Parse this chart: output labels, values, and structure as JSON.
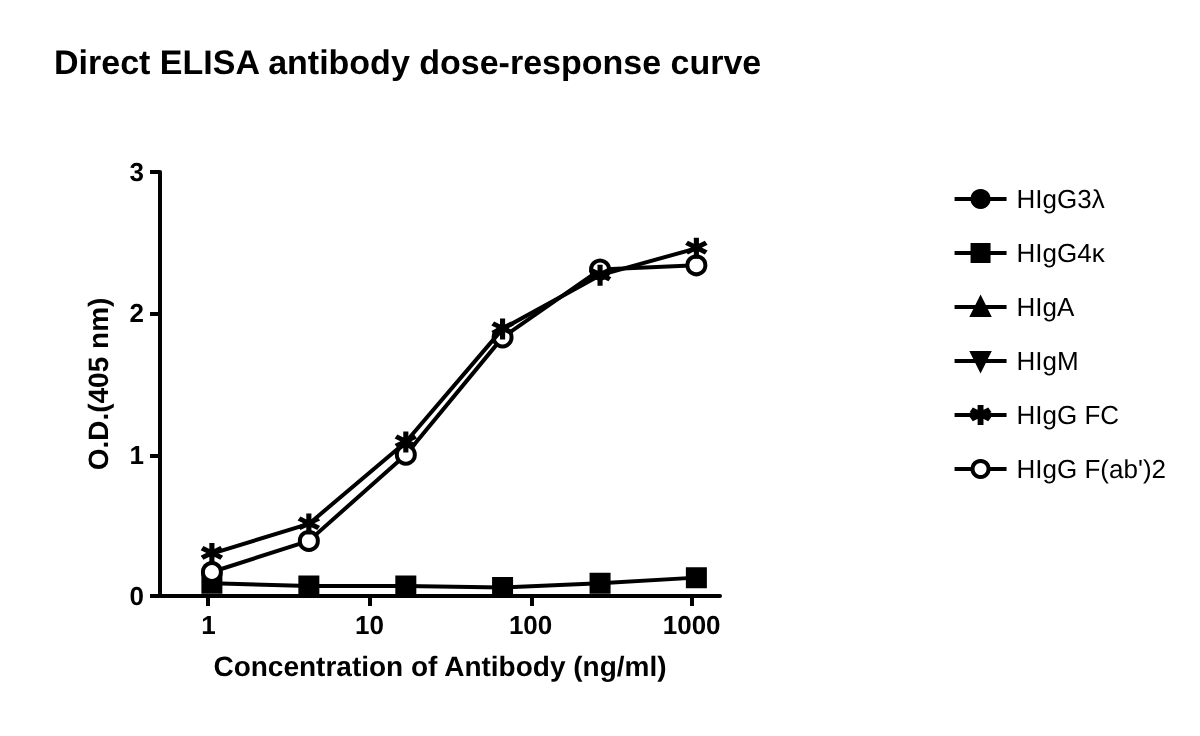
{
  "chart_data": {
    "type": "line",
    "title": "Direct ELISA antibody dose-response curve",
    "xlabel": "Concentration of Antibody (ng/ml)",
    "ylabel": "O.D.(405 nm)",
    "x": [
      1.05,
      4.2,
      16.8,
      67,
      270,
      1070
    ],
    "xlim": [
      0.5,
      1500
    ],
    "xticks": [
      1,
      10,
      100,
      {
        "value": 1000,
        "label": "1000"
      }
    ],
    "log": "x",
    "ylim": [
      0,
      3
    ],
    "yticks": [
      0,
      1,
      2,
      3
    ],
    "grid": false,
    "legend": "right",
    "line_style": "solid",
    "series": [
      {
        "name": "HIgG3λ",
        "color": "#000000",
        "marker": "circle",
        "values": [
          null,
          null,
          null,
          null,
          null,
          null
        ]
      },
      {
        "name": "HIgG4κ",
        "color": "#000000",
        "marker": "square",
        "values": [
          0.09,
          0.07,
          0.07,
          0.06,
          0.09,
          0.13
        ]
      },
      {
        "name": "HIgA",
        "color": "#000000",
        "marker": "triangle",
        "values": [
          null,
          null,
          null,
          null,
          null,
          null
        ]
      },
      {
        "name": "HIgM",
        "color": "#000000",
        "marker": "triangle-down",
        "values": [
          null,
          null,
          null,
          null,
          null,
          null
        ]
      },
      {
        "name": "HIgG FC",
        "color": "#000000",
        "marker": "star",
        "values": [
          0.3,
          0.51,
          1.09,
          1.89,
          2.27,
          2.46
        ]
      },
      {
        "name": "HIgG F(ab')2",
        "color": "#000000",
        "marker": "circle-open",
        "values": [
          0.17,
          0.39,
          1.0,
          1.83,
          2.31,
          2.34
        ]
      }
    ]
  }
}
